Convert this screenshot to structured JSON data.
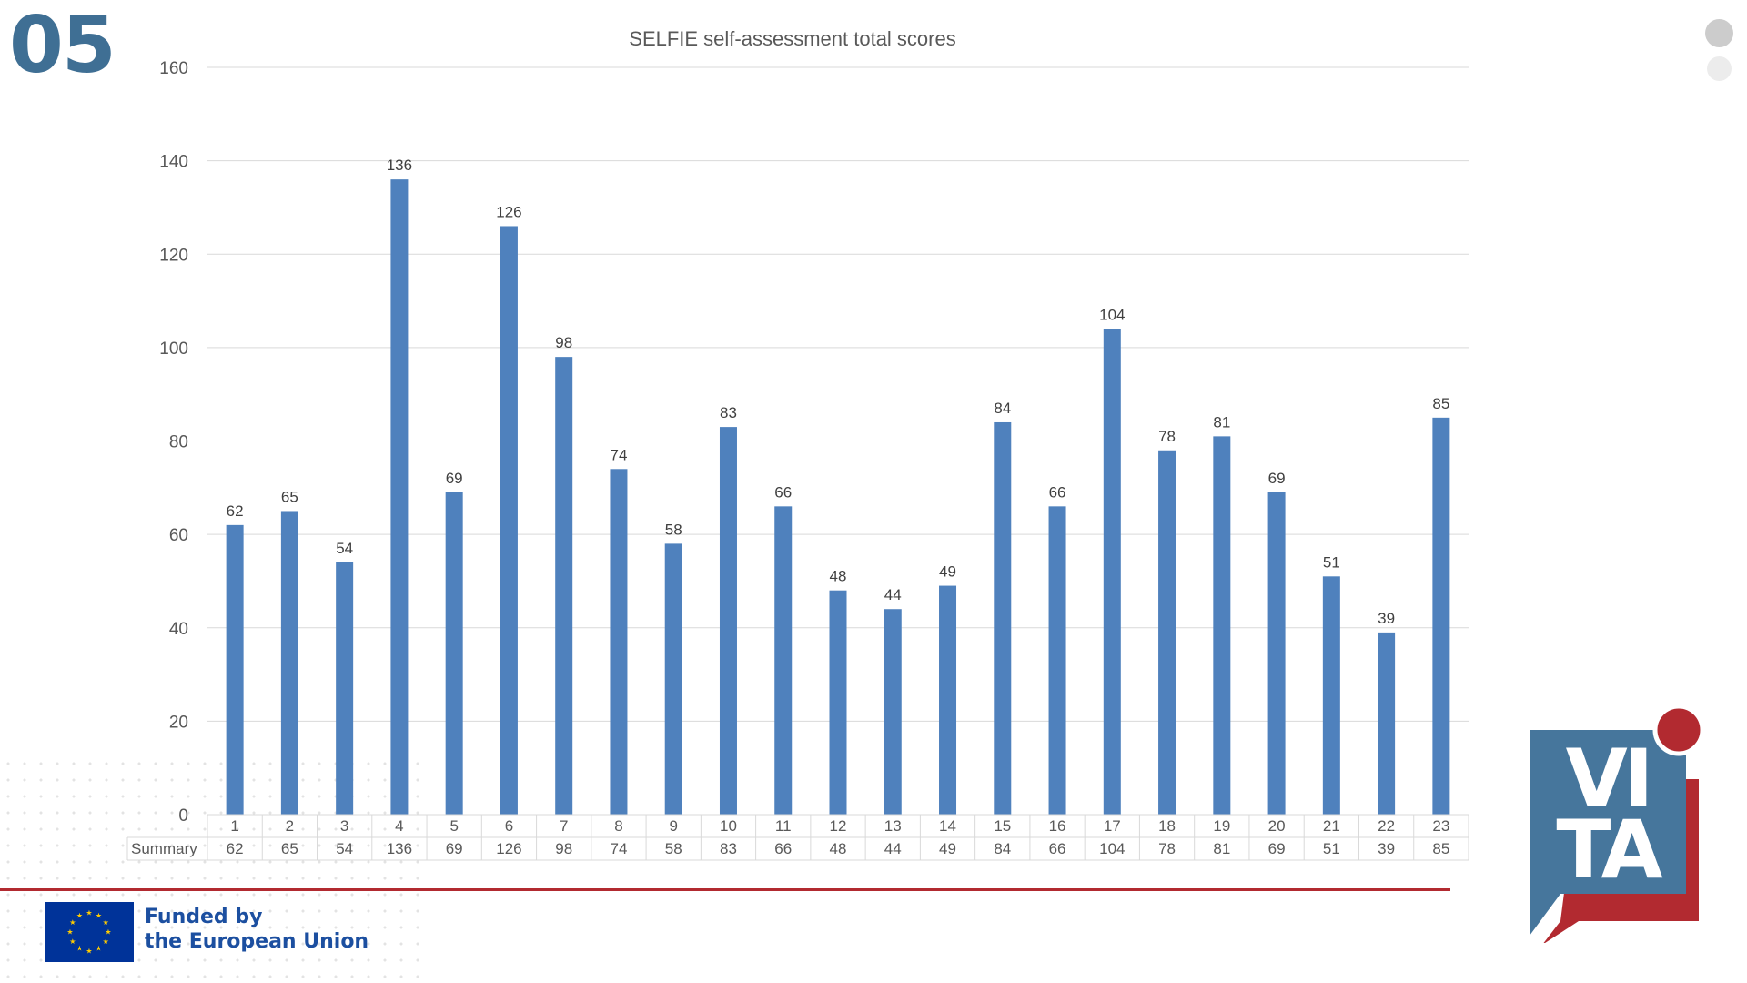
{
  "slide": {
    "number": "05",
    "number_color": "#3f6f94"
  },
  "chart_data": {
    "type": "bar",
    "title": "SELFIE self-assessment total scores",
    "xlabel": "",
    "ylabel": "",
    "ylim": [
      0,
      160
    ],
    "yticks": [
      0,
      20,
      40,
      60,
      80,
      100,
      120,
      140,
      160
    ],
    "grid": true,
    "data_labels": true,
    "categories": [
      "1",
      "2",
      "3",
      "4",
      "5",
      "6",
      "7",
      "8",
      "9",
      "10",
      "11",
      "12",
      "13",
      "14",
      "15",
      "16",
      "17",
      "18",
      "19",
      "20",
      "21",
      "22",
      "23"
    ],
    "series": [
      {
        "name": "Summary",
        "color": "#4f81bd",
        "values": [
          62,
          65,
          54,
          136,
          69,
          126,
          98,
          74,
          58,
          83,
          66,
          48,
          44,
          49,
          84,
          66,
          104,
          78,
          81,
          69,
          51,
          39,
          85
        ]
      }
    ],
    "data_table": true
  },
  "footer": {
    "funded_line1": "Funded by",
    "funded_line2": "the European Union",
    "text_color": "#1c4fa0",
    "flag_color": "#003399",
    "star_color": "#ffcc00",
    "line_color": "#b22a30"
  },
  "logo": {
    "line1": "VI",
    "line2": "TA",
    "blue": "#46769c",
    "red": "#b22a30"
  }
}
